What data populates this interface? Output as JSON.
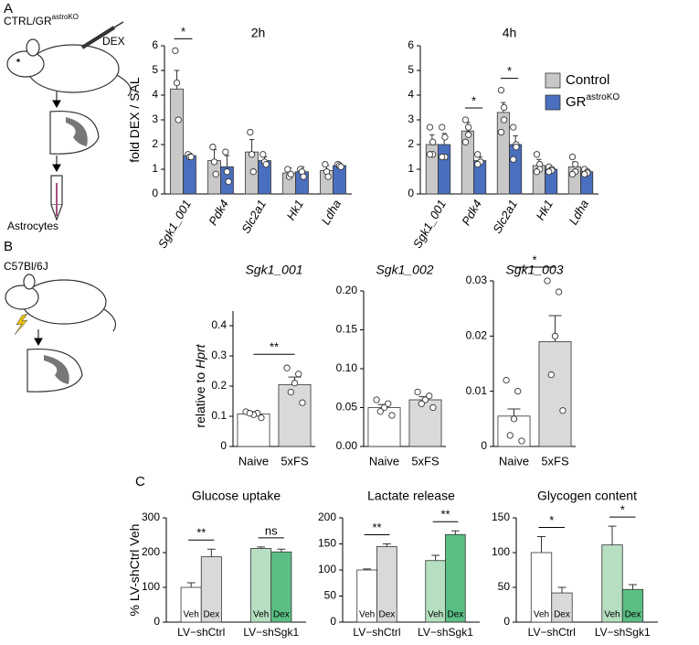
{
  "figure": {
    "panel_labels": [
      "A",
      "B",
      "C"
    ],
    "schematic": {
      "genotype": "CTRL/GR",
      "genotype_sup": "astroKO",
      "treatment": "DEX",
      "cells": "Astrocytes",
      "strain": "C57Bl/6J"
    }
  },
  "chart_data": [
    {
      "type": "bar",
      "title": "2h",
      "ylabel": "fold DEX / SAL",
      "categories": [
        "Sgk1_001",
        "Pdk4",
        "Slc2a1",
        "Hk1",
        "Ldha"
      ],
      "ylim": [
        0,
        6
      ],
      "yticks": [
        0,
        1,
        2,
        3,
        4,
        5,
        6
      ],
      "series": [
        {
          "name": "Control",
          "color": "#c8c8c8",
          "values": [
            4.25,
            1.35,
            1.7,
            0.85,
            0.95
          ],
          "errors": [
            0.75,
            0.45,
            0.5,
            0.2,
            0.2
          ],
          "points": [
            [
              5.8,
              4.5,
              3.0
            ],
            [
              1.9,
              1.3,
              0.8
            ],
            [
              2.5,
              1.6,
              0.9
            ],
            [
              1.0,
              0.7,
              0.8
            ],
            [
              1.2,
              0.9,
              0.7
            ]
          ]
        },
        {
          "name": "GR",
          "name_sup": "astroKO",
          "color": "#4a6fbf",
          "values": [
            1.55,
            1.1,
            1.35,
            0.9,
            1.15
          ],
          "errors": [
            0.1,
            0.45,
            0.15,
            0.2,
            0.1
          ],
          "points": [
            [
              1.6,
              1.5,
              1.5
            ],
            [
              1.7,
              0.9,
              0.5
            ],
            [
              1.6,
              1.3,
              1.2
            ],
            [
              1.0,
              0.9,
              0.7
            ],
            [
              1.2,
              1.15,
              1.1
            ]
          ]
        }
      ],
      "significance": [
        "*",
        null,
        null,
        null,
        null
      ]
    },
    {
      "type": "bar",
      "title": "4h",
      "categories": [
        "Sgk1_001",
        "Pdk4",
        "Slc2a1",
        "Hk1",
        "Ldha"
      ],
      "ylim": [
        0,
        6
      ],
      "yticks": [
        0,
        1,
        2,
        3,
        4,
        5,
        6
      ],
      "legend": "upper right",
      "series": [
        {
          "name": "Control",
          "color": "#c8c8c8",
          "values": [
            2.0,
            2.55,
            3.3,
            1.15,
            1.1
          ],
          "errors": [
            0.4,
            0.35,
            0.4,
            0.25,
            0.2
          ],
          "points": [
            [
              2.7,
              2.1,
              1.6,
              1.6
            ],
            [
              3.0,
              2.7,
              2.4,
              2.1
            ],
            [
              4.2,
              3.5,
              3.0,
              2.5
            ],
            [
              1.6,
              1.2,
              1.0,
              0.9
            ],
            [
              1.5,
              1.2,
              0.9,
              0.8
            ]
          ]
        },
        {
          "name": "GR",
          "name_sup": "astroKO",
          "color": "#4a6fbf",
          "values": [
            2.0,
            1.35,
            2.0,
            1.0,
            0.9
          ],
          "errors": [
            0.45,
            0.15,
            0.35,
            0.1,
            0.1
          ],
          "points": [
            [
              2.7,
              2.3,
              1.5,
              1.5
            ],
            [
              1.6,
              1.3,
              1.3,
              1.2
            ],
            [
              2.7,
              2.0,
              1.9,
              1.4
            ],
            [
              1.1,
              1.0,
              0.95,
              0.9
            ],
            [
              1.0,
              0.9,
              0.85,
              0.8
            ]
          ]
        }
      ],
      "significance": [
        null,
        "*",
        "*",
        null,
        null
      ]
    },
    {
      "type": "bar",
      "title": "Sgk1_001",
      "ylabel": "relative to",
      "ylabel_em": "Hprt",
      "categories": [
        "Naive",
        "5xFS"
      ],
      "values": [
        0.108,
        0.205
      ],
      "errors": [
        0.007,
        0.025
      ],
      "colors": [
        "#ffffff",
        "#d9d9d9"
      ],
      "points": [
        [
          0.115,
          0.11,
          0.105,
          0.11,
          0.095
        ],
        [
          0.26,
          0.24,
          0.21,
          0.18,
          0.145
        ]
      ],
      "ylim": [
        0,
        0.4
      ],
      "yticks": [
        0,
        0.1,
        0.2,
        0.3,
        0.4
      ],
      "significance": "**"
    },
    {
      "type": "bar",
      "title": "Sgk1_002",
      "categories": [
        "Naive",
        "5xFS"
      ],
      "values": [
        0.05,
        0.06
      ],
      "errors": [
        0.004,
        0.004
      ],
      "colors": [
        "#ffffff",
        "#d9d9d9"
      ],
      "points": [
        [
          0.06,
          0.055,
          0.05,
          0.045,
          0.04
        ],
        [
          0.07,
          0.065,
          0.06,
          0.055,
          0.05
        ]
      ],
      "ylim": [
        0,
        0.2
      ],
      "yticks": [
        {
          "value": 0,
          "label": "0.00"
        },
        0.05,
        {
          "value": 0.1,
          "label": "0.10"
        },
        0.15,
        {
          "value": 0.2,
          "label": "0.20"
        }
      ]
    },
    {
      "type": "bar",
      "title": "Sgk1_003",
      "categories": [
        "Naive",
        "5xFS"
      ],
      "values": [
        0.0055,
        0.019
      ],
      "errors": [
        0.0013,
        0.0047
      ],
      "colors": [
        "#ffffff",
        "#d9d9d9"
      ],
      "points": [
        [
          0.012,
          0.01,
          0.005,
          0.002,
          0.001
        ],
        [
          0.03,
          0.028,
          0.02,
          0.013,
          0.0065
        ]
      ],
      "ylim": [
        0,
        0.03
      ],
      "yticks": [
        0,
        0.01,
        0.02,
        0.03
      ],
      "significance": "*"
    },
    {
      "type": "bar",
      "title": "Glucose uptake",
      "ylabel": "% LV-shCtrl Veh",
      "categories": [
        "LV−shCtrl",
        "LV−shSgk1"
      ],
      "ylim": [
        0,
        300
      ],
      "yticks": [
        0,
        100,
        200,
        300
      ],
      "series": [
        {
          "name": "Veh",
          "colors": [
            "#ffffff",
            "#b5dfc0"
          ],
          "values": [
            100,
            212
          ],
          "errors": [
            13,
            4
          ]
        },
        {
          "name": "Dex",
          "colors": [
            "#d9d9d9",
            "#5bbf85"
          ],
          "values": [
            188,
            202
          ],
          "errors": [
            22,
            8
          ]
        }
      ],
      "significance": [
        "**",
        "ns"
      ]
    },
    {
      "type": "bar",
      "title": "Lactate release",
      "categories": [
        "LV−shCtrl",
        "LV−shSgk1"
      ],
      "ylim": [
        0,
        200
      ],
      "yticks": [
        0,
        50,
        100,
        150,
        200
      ],
      "series": [
        {
          "name": "Veh",
          "colors": [
            "#ffffff",
            "#b5dfc0"
          ],
          "values": [
            100,
            118
          ],
          "errors": [
            2,
            10
          ]
        },
        {
          "name": "Dex",
          "colors": [
            "#d9d9d9",
            "#5bbf85"
          ],
          "values": [
            145,
            168
          ],
          "errors": [
            5,
            7
          ]
        }
      ],
      "significance": [
        "**",
        "**"
      ]
    },
    {
      "type": "bar",
      "title": "Glycogen content",
      "categories": [
        "LV−shCtrl",
        "LV−shSgk1"
      ],
      "ylim": [
        0,
        150
      ],
      "yticks": [
        0,
        50,
        100,
        150
      ],
      "series": [
        {
          "name": "Veh",
          "colors": [
            "#ffffff",
            "#b5dfc0"
          ],
          "values": [
            100,
            111
          ],
          "errors": [
            23,
            27
          ]
        },
        {
          "name": "Dex",
          "colors": [
            "#d9d9d9",
            "#5bbf85"
          ],
          "values": [
            42,
            47
          ],
          "errors": [
            8,
            7
          ]
        }
      ],
      "significance": [
        "*",
        "*"
      ]
    }
  ]
}
